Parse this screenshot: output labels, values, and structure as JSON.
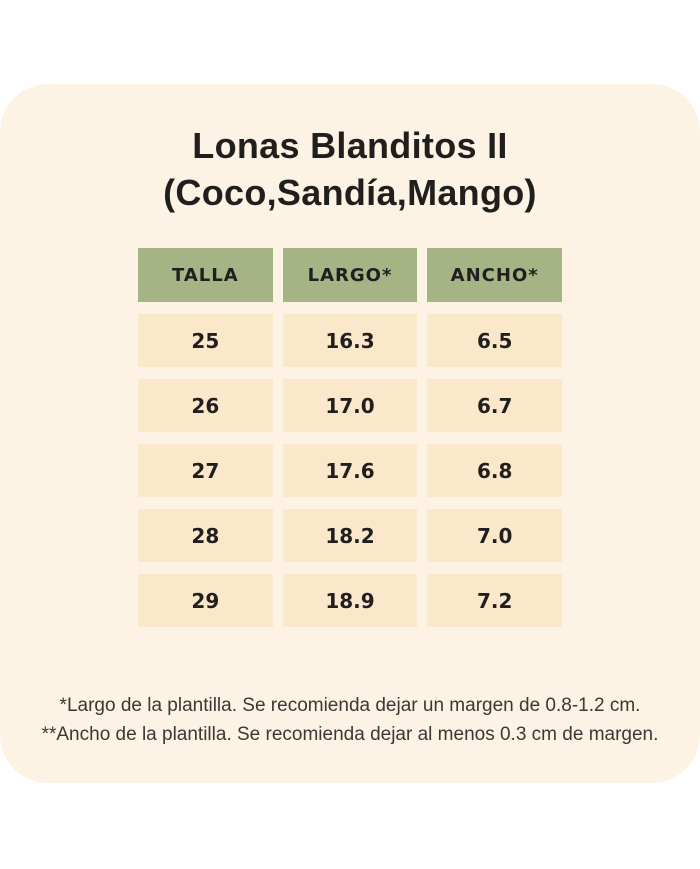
{
  "title": {
    "line1": "Lonas Blanditos II",
    "line2": "(Coco,Sandía,Mango)"
  },
  "table": {
    "columns": [
      "TALLA",
      "LARGO*",
      "ANCHO*"
    ],
    "rows": [
      [
        "25",
        "16.3",
        "6.5"
      ],
      [
        "26",
        "17.0",
        "6.7"
      ],
      [
        "27",
        "17.6",
        "6.8"
      ],
      [
        "28",
        "18.2",
        "7.0"
      ],
      [
        "29",
        "18.9",
        "7.2"
      ]
    ]
  },
  "footnotes": [
    "*Largo de la plantilla. Se recomienda dejar un margen de 0.8-1.2 cm.",
    "**Ancho de la plantilla. Se recomienda dejar al menos 0.3 cm de margen."
  ],
  "colors": {
    "card_bg": "#fdf3e4",
    "header_bg": "#a4b485",
    "cell_bg": "#fbe8cb",
    "text": "#211f1e"
  },
  "chart_data": {
    "type": "table",
    "title": "Lonas Blanditos II (Coco,Sandía,Mango)",
    "columns": [
      "TALLA",
      "LARGO*",
      "ANCHO*"
    ],
    "rows": [
      [
        25,
        16.3,
        6.5
      ],
      [
        26,
        17.0,
        6.7
      ],
      [
        27,
        17.6,
        6.8
      ],
      [
        28,
        18.2,
        7.0
      ],
      [
        29,
        18.9,
        7.2
      ]
    ],
    "notes": [
      "*Largo de la plantilla. Se recomienda dejar un margen de 0.8-1.2 cm.",
      "**Ancho de la plantilla. Se recomienda dejar al menos 0.3 cm de margen."
    ]
  }
}
